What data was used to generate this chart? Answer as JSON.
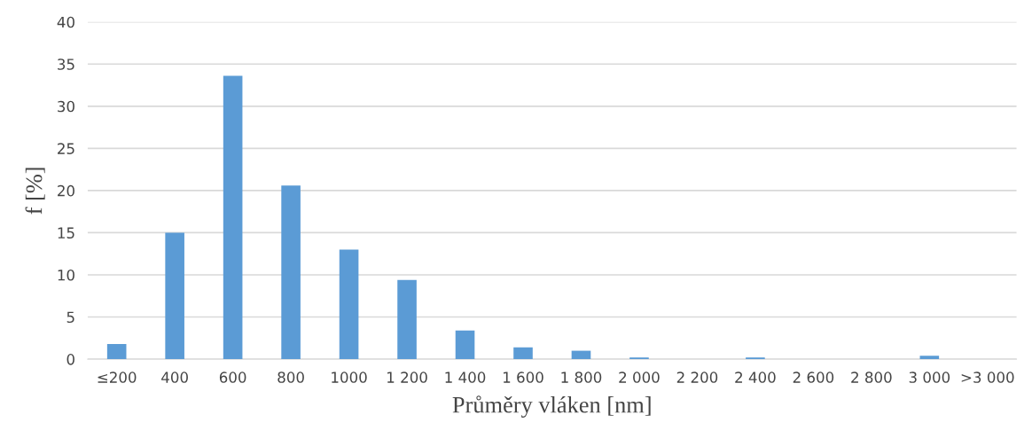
{
  "chart_data": {
    "type": "bar",
    "xlabel": "Průměry vláken [nm]",
    "ylabel": "f [%]",
    "categories": [
      "≤200",
      "400",
      "600",
      "800",
      "1000",
      "1 200",
      "1 400",
      "1 600",
      "1 800",
      "2 000",
      "2 200",
      "2 400",
      "2 600",
      "2 800",
      "3 000",
      ">3 000"
    ],
    "values": [
      1.8,
      15,
      33.6,
      20.6,
      13.0,
      9.4,
      3.4,
      1.4,
      1.0,
      0.2,
      0,
      0.2,
      0,
      0,
      0.4,
      0
    ],
    "color": "#5b9bd5",
    "ylim": [
      0,
      40
    ],
    "yticks": [
      0,
      5,
      10,
      15,
      20,
      25,
      30,
      35,
      40
    ],
    "grid": "y",
    "legend": false
  }
}
